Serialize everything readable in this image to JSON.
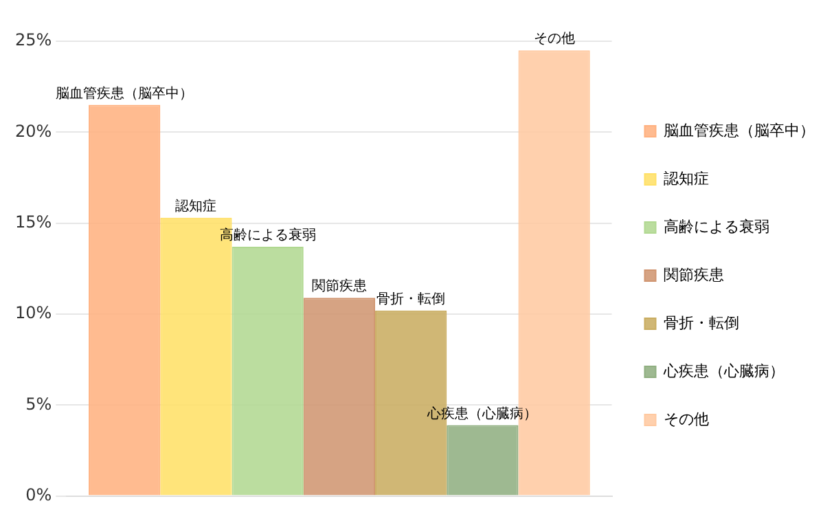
{
  "chart_data": {
    "type": "bar",
    "categories": [
      null
    ],
    "series": [
      {
        "name": "脳血管疾患（脳卒中）",
        "color": "#ffb07f",
        "values": [
          21.5
        ]
      },
      {
        "name": "認知症",
        "color": "#ffe066",
        "values": [
          15.3
        ]
      },
      {
        "name": "高齢による衰弱",
        "color": "#b0d890",
        "values": [
          13.7
        ]
      },
      {
        "name": "関節疾患",
        "color": "#d09570",
        "values": [
          10.9
        ]
      },
      {
        "name": "骨折・転倒",
        "color": "#c9ac60",
        "values": [
          10.2
        ]
      },
      {
        "name": "心疾患（心臓病）",
        "color": "#8fae80",
        "values": [
          3.9
        ]
      },
      {
        "name": "その他",
        "color": "#ffc9a0",
        "values": [
          24.5
        ]
      }
    ],
    "ylim": [
      0,
      25
    ],
    "yticks": [
      {
        "value": 0,
        "label": "0%"
      },
      {
        "value": 5,
        "label": "5%"
      },
      {
        "value": 10,
        "label": "10%"
      },
      {
        "value": 15,
        "label": "15%"
      },
      {
        "value": 20,
        "label": "20%"
      },
      {
        "value": 25,
        "label": "25%"
      }
    ],
    "grid": "y",
    "legend": "right"
  }
}
